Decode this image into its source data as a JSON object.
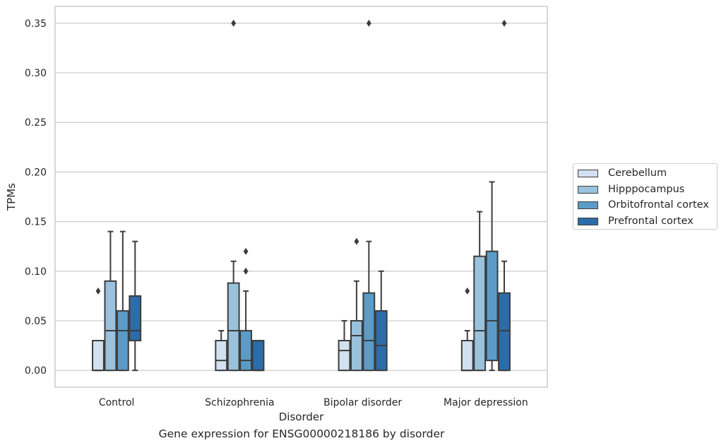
{
  "chart_data": {
    "type": "box",
    "title": "",
    "caption": "Gene expression for ENSG00000218186 by disorder",
    "xlabel": "Disorder",
    "ylabel": "TPMs",
    "ylim": [
      -0.017,
      0.367
    ],
    "yticks": [
      0.0,
      0.05,
      0.1,
      0.15,
      0.2,
      0.25,
      0.3,
      0.35
    ],
    "ytick_labels": [
      "0.00",
      "0.05",
      "0.10",
      "0.15",
      "0.20",
      "0.25",
      "0.30",
      "0.35"
    ],
    "grid": true,
    "legend_position": "right",
    "categories": [
      "Control",
      "Schizophrenia",
      "Bipolar disorder",
      "Major depression"
    ],
    "series": [
      {
        "name": "Cerebellum",
        "color": "#d1e1f0",
        "boxes": [
          {
            "q1": 0.0,
            "median": 0.0,
            "q3": 0.03,
            "whisker_low": 0.0,
            "whisker_high": 0.03,
            "outliers": [
              0.08
            ]
          },
          {
            "q1": 0.0,
            "median": 0.01,
            "q3": 0.03,
            "whisker_low": 0.0,
            "whisker_high": 0.04,
            "outliers": []
          },
          {
            "q1": 0.0,
            "median": 0.02,
            "q3": 0.03,
            "whisker_low": 0.0,
            "whisker_high": 0.05,
            "outliers": []
          },
          {
            "q1": 0.0,
            "median": 0.0,
            "q3": 0.03,
            "whisker_low": 0.0,
            "whisker_high": 0.04,
            "outliers": [
              0.08
            ]
          }
        ]
      },
      {
        "name": "Hipppocampus",
        "color": "#9ac2dc",
        "boxes": [
          {
            "q1": 0.0,
            "median": 0.04,
            "q3": 0.09,
            "whisker_low": 0.0,
            "whisker_high": 0.14,
            "outliers": []
          },
          {
            "q1": 0.0,
            "median": 0.04,
            "q3": 0.088,
            "whisker_low": 0.0,
            "whisker_high": 0.11,
            "outliers": [
              0.35
            ]
          },
          {
            "q1": 0.0,
            "median": 0.035,
            "q3": 0.05,
            "whisker_low": 0.0,
            "whisker_high": 0.09,
            "outliers": [
              0.13
            ]
          },
          {
            "q1": 0.0,
            "median": 0.04,
            "q3": 0.115,
            "whisker_low": 0.0,
            "whisker_high": 0.16,
            "outliers": []
          }
        ]
      },
      {
        "name": "Orbitofrontal cortex",
        "color": "#5b9bc8",
        "boxes": [
          {
            "q1": 0.0,
            "median": 0.04,
            "q3": 0.06,
            "whisker_low": 0.0,
            "whisker_high": 0.14,
            "outliers": []
          },
          {
            "q1": 0.0,
            "median": 0.01,
            "q3": 0.04,
            "whisker_low": 0.0,
            "whisker_high": 0.08,
            "outliers": [
              0.1,
              0.12
            ]
          },
          {
            "q1": 0.0,
            "median": 0.03,
            "q3": 0.078,
            "whisker_low": 0.0,
            "whisker_high": 0.13,
            "outliers": [
              0.35
            ]
          },
          {
            "q1": 0.01,
            "median": 0.05,
            "q3": 0.12,
            "whisker_low": 0.0,
            "whisker_high": 0.19,
            "outliers": []
          }
        ]
      },
      {
        "name": "Prefrontal cortex",
        "color": "#2c6ca9",
        "boxes": [
          {
            "q1": 0.03,
            "median": 0.04,
            "q3": 0.075,
            "whisker_low": 0.0,
            "whisker_high": 0.13,
            "outliers": []
          },
          {
            "q1": 0.0,
            "median": 0.0,
            "q3": 0.03,
            "whisker_low": 0.0,
            "whisker_high": 0.03,
            "outliers": []
          },
          {
            "q1": 0.0,
            "median": 0.025,
            "q3": 0.06,
            "whisker_low": 0.0,
            "whisker_high": 0.1,
            "outliers": []
          },
          {
            "q1": 0.0,
            "median": 0.04,
            "q3": 0.078,
            "whisker_low": 0.0,
            "whisker_high": 0.11,
            "outliers": [
              0.35
            ]
          }
        ]
      }
    ]
  }
}
